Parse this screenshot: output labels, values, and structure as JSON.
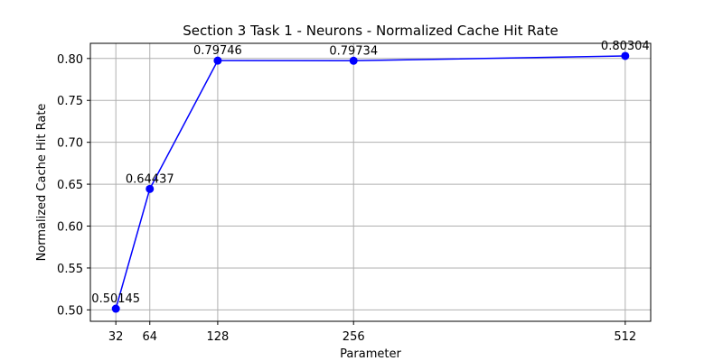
{
  "chart_data": {
    "type": "line",
    "title": "Section 3 Task 1 - Neurons - Normalized Cache Hit Rate",
    "xlabel": "Parameter",
    "ylabel": "Normalized Cache Hit Rate",
    "x": [
      32,
      64,
      128,
      256,
      512
    ],
    "series": [
      {
        "values": [
          0.50145,
          0.64437,
          0.79746,
          0.79734,
          0.80304
        ],
        "labels": [
          "0.50145",
          "0.64437",
          "0.79746",
          "0.79734",
          "0.80304"
        ],
        "color": "#0000ff"
      }
    ],
    "xticks": [
      32,
      64,
      128,
      256,
      512
    ],
    "xtick_labels": [
      "32",
      "64",
      "128",
      "256",
      "512"
    ],
    "yticks": [
      0.5,
      0.55,
      0.6,
      0.65,
      0.7,
      0.75,
      0.8
    ],
    "ytick_labels": [
      "0.50",
      "0.55",
      "0.60",
      "0.65",
      "0.70",
      "0.75",
      "0.80"
    ],
    "xlim": [
      8,
      536
    ],
    "ylim": [
      0.4864,
      0.8181
    ],
    "grid": true,
    "marker": "circle"
  }
}
